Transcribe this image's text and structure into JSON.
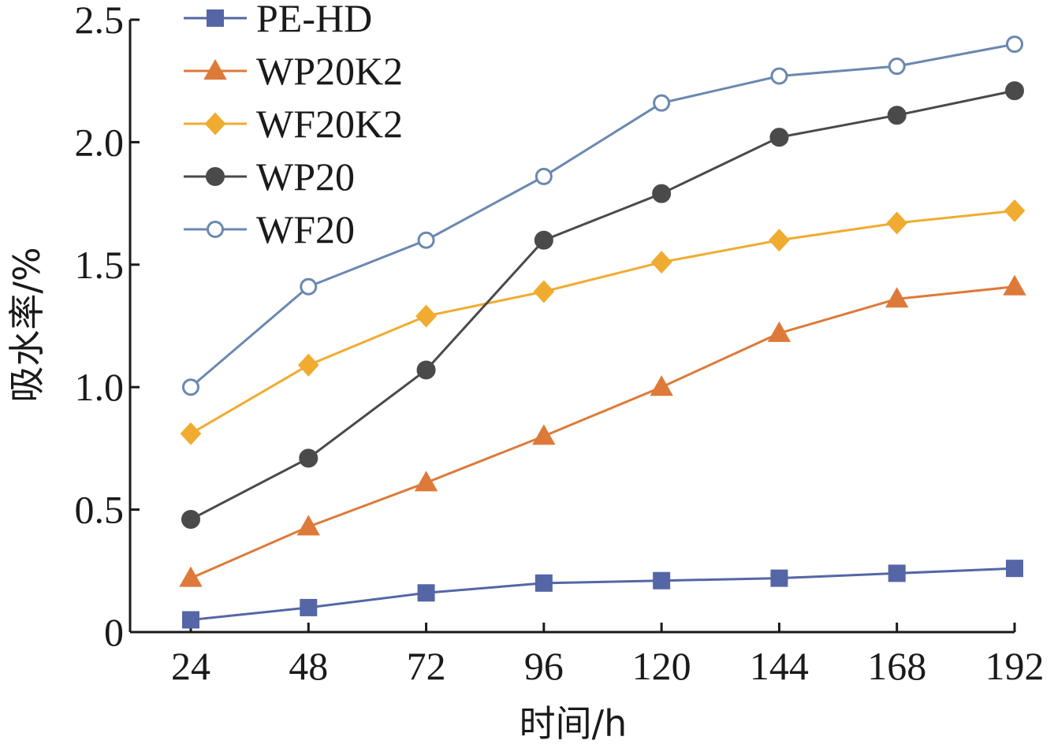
{
  "chart_data": {
    "type": "line",
    "title": "",
    "xlabel": "时间/h",
    "ylabel": "吸水率/%",
    "x": [
      24,
      48,
      72,
      96,
      120,
      144,
      168,
      192
    ],
    "x_tick_labels": [
      "24",
      "48",
      "72",
      "96",
      "120",
      "144",
      "168",
      "192"
    ],
    "y_ticks": [
      0,
      0.5,
      1.0,
      1.5,
      2.0,
      2.5
    ],
    "y_tick_labels": [
      "0",
      "0.5",
      "1.0",
      "1.5",
      "2.0",
      "2.5"
    ],
    "ylim": [
      0,
      2.5
    ],
    "grid": false,
    "legend_position": "top-left",
    "series": [
      {
        "name": "PE-HD",
        "color": "#5566a6",
        "marker": "square",
        "fill": true,
        "values": [
          0.05,
          0.1,
          0.16,
          0.2,
          0.21,
          0.22,
          0.24,
          0.26
        ]
      },
      {
        "name": "WP20K2",
        "color": "#dd7a3a",
        "marker": "triangle",
        "fill": true,
        "values": [
          0.22,
          0.43,
          0.61,
          0.8,
          1.0,
          1.22,
          1.36,
          1.41
        ]
      },
      {
        "name": "WF20K2",
        "color": "#f0ac30",
        "marker": "diamond",
        "fill": true,
        "values": [
          0.81,
          1.09,
          1.29,
          1.39,
          1.51,
          1.6,
          1.67,
          1.72
        ]
      },
      {
        "name": "WP20",
        "color": "#4a4a4a",
        "marker": "circle",
        "fill": true,
        "values": [
          0.46,
          0.71,
          1.07,
          1.6,
          1.79,
          2.02,
          2.11,
          2.21
        ]
      },
      {
        "name": "WF20",
        "color": "#6a88b0",
        "marker": "circle",
        "fill": false,
        "values": [
          1.0,
          1.41,
          1.6,
          1.86,
          2.16,
          2.27,
          2.31,
          2.4
        ]
      }
    ]
  }
}
